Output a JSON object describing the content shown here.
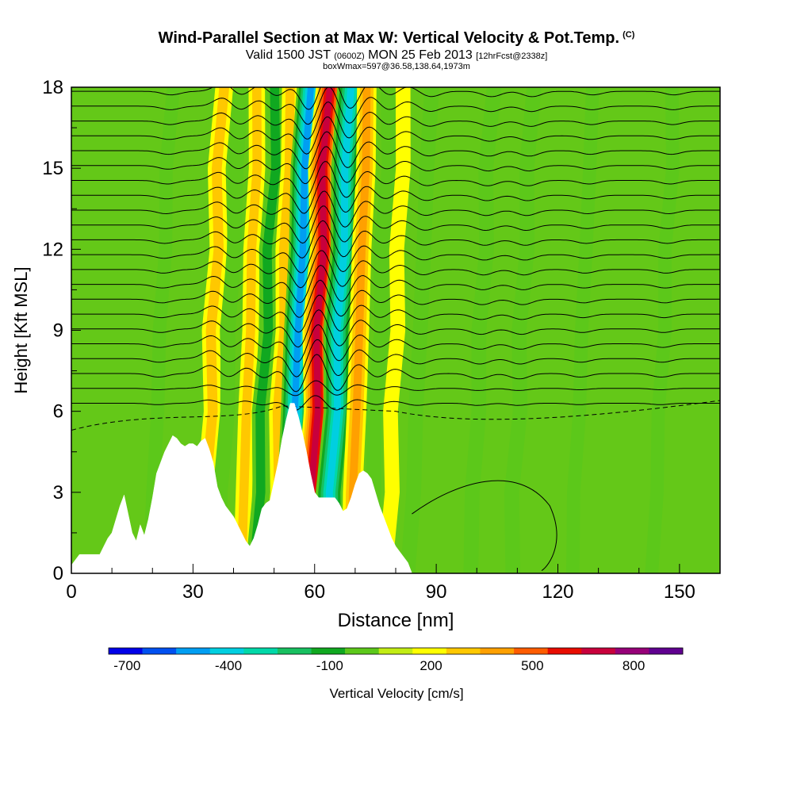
{
  "chart_data": {
    "type": "heatmap",
    "title": "Wind-Parallel Section at Max W: Vertical Velocity & Pot.Temp.",
    "copyright_mark": "(C)",
    "subtitle_parts": {
      "a": "Valid 1500 JST",
      "b": "(0600Z)",
      "c": "MON 25 Feb 2013",
      "d": "[12hrFcst@2338z]"
    },
    "subtitle2": "boxWmax=597@36.58,138.64,1973m",
    "xlabel": "Distance [nm]",
    "ylabel": "Height [Kft MSL]",
    "xlim": [
      0,
      160
    ],
    "ylim": [
      0,
      18
    ],
    "xticks": [
      0,
      30,
      60,
      90,
      120,
      150
    ],
    "yticks": [
      0,
      3,
      6,
      9,
      12,
      15,
      18
    ],
    "grid": false,
    "colorbar": {
      "label": "Vertical Velocity [cm/s]",
      "tick_labels": [
        "-700",
        "-400",
        "-100",
        "200",
        "500",
        "800"
      ],
      "tick_values": [
        -700,
        -400,
        -100,
        200,
        500,
        800
      ],
      "levels": [
        -750,
        -650,
        -550,
        -450,
        -350,
        -250,
        -150,
        -50,
        50,
        150,
        250,
        350,
        450,
        550,
        650,
        750
      ],
      "colors": [
        "#0000e8",
        "#0050f0",
        "#009ef2",
        "#00cfe0",
        "#00d8a8",
        "#18c060",
        "#10a820",
        "#5cc81a",
        "#c2ec14",
        "#ffff00",
        "#ffc800",
        "#ffa000",
        "#ff5c00",
        "#e80c00",
        "#c8003c",
        "#960078",
        "#600090"
      ]
    },
    "terrain_top_kft": [
      [
        0,
        0.3
      ],
      [
        2,
        0.7
      ],
      [
        7,
        0.7
      ],
      [
        8,
        1
      ],
      [
        9,
        1.3
      ],
      [
        10,
        1.5
      ],
      [
        11,
        2
      ],
      [
        12,
        2.5
      ],
      [
        13,
        2.9
      ],
      [
        14,
        2.2
      ],
      [
        15,
        1.5
      ],
      [
        16,
        1.2
      ],
      [
        17,
        1.8
      ],
      [
        18,
        1.4
      ],
      [
        19,
        2
      ],
      [
        20,
        2.8
      ],
      [
        21,
        3.7
      ],
      [
        22,
        4.1
      ],
      [
        23,
        4.5
      ],
      [
        24,
        4.8
      ],
      [
        25,
        5.1
      ],
      [
        26,
        5
      ],
      [
        27,
        4.8
      ],
      [
        28,
        4.7
      ],
      [
        29,
        4.8
      ],
      [
        30,
        4.8
      ],
      [
        31,
        4.7
      ],
      [
        32,
        4.9
      ],
      [
        33,
        5
      ],
      [
        34,
        4.6
      ],
      [
        35,
        4.1
      ],
      [
        36,
        3.2
      ],
      [
        37,
        2.8
      ],
      [
        38,
        2.5
      ],
      [
        39,
        2.3
      ],
      [
        40,
        2.1
      ],
      [
        41,
        1.8
      ],
      [
        42,
        1.5
      ],
      [
        43,
        1.2
      ],
      [
        44,
        1
      ],
      [
        45,
        1.3
      ],
      [
        46,
        1.8
      ],
      [
        47,
        2.4
      ],
      [
        48,
        2.6
      ],
      [
        49,
        2.7
      ],
      [
        50,
        3.4
      ],
      [
        51,
        4.1
      ],
      [
        52,
        5
      ],
      [
        53,
        5.7
      ],
      [
        54,
        6.3
      ],
      [
        55,
        6.3
      ],
      [
        56,
        5.8
      ],
      [
        57,
        5.2
      ],
      [
        58,
        4.5
      ],
      [
        59,
        3.7
      ],
      [
        60,
        3
      ],
      [
        61,
        2.8
      ],
      [
        62,
        2.8
      ],
      [
        63,
        2.8
      ],
      [
        64,
        2.8
      ],
      [
        65,
        2.8
      ],
      [
        66,
        2.6
      ],
      [
        67,
        2.3
      ],
      [
        68,
        2.4
      ],
      [
        69,
        2.8
      ],
      [
        70,
        3.3
      ],
      [
        71,
        3.7
      ],
      [
        72,
        3.8
      ],
      [
        73,
        3.7
      ],
      [
        74,
        3.5
      ],
      [
        75,
        3
      ],
      [
        76,
        2.5
      ],
      [
        77,
        2.1
      ],
      [
        78,
        1.7
      ],
      [
        79,
        1.3
      ],
      [
        80,
        1
      ],
      [
        81,
        0.8
      ],
      [
        82,
        0.6
      ],
      [
        83,
        0.4
      ],
      [
        84,
        0
      ],
      [
        160,
        0
      ]
    ],
    "vertical_velocity_features_cm_s": [
      {
        "x_nm": 22,
        "w": -100
      },
      {
        "x_nm": 35,
        "w": 250
      },
      {
        "x_nm": 39,
        "w": -150
      },
      {
        "x_nm": 44,
        "w": 200
      },
      {
        "x_nm": 48,
        "w": -200
      },
      {
        "x_nm": 52,
        "w": 200
      },
      {
        "x_nm": 56,
        "w": -600
      },
      {
        "x_nm": 61,
        "w": 650
      },
      {
        "x_nm": 66,
        "w": -550
      },
      {
        "x_nm": 71,
        "w": 300
      },
      {
        "x_nm": 76,
        "w": -150
      },
      {
        "x_nm": 80,
        "w": 150
      },
      {
        "x_nm": 86,
        "w": -150
      },
      {
        "x_nm": 101,
        "w": -150
      },
      {
        "x_nm": 111,
        "w": -150
      },
      {
        "x_nm": 126,
        "w": -100
      },
      {
        "x_nm": 146,
        "w": -100
      }
    ]
  }
}
